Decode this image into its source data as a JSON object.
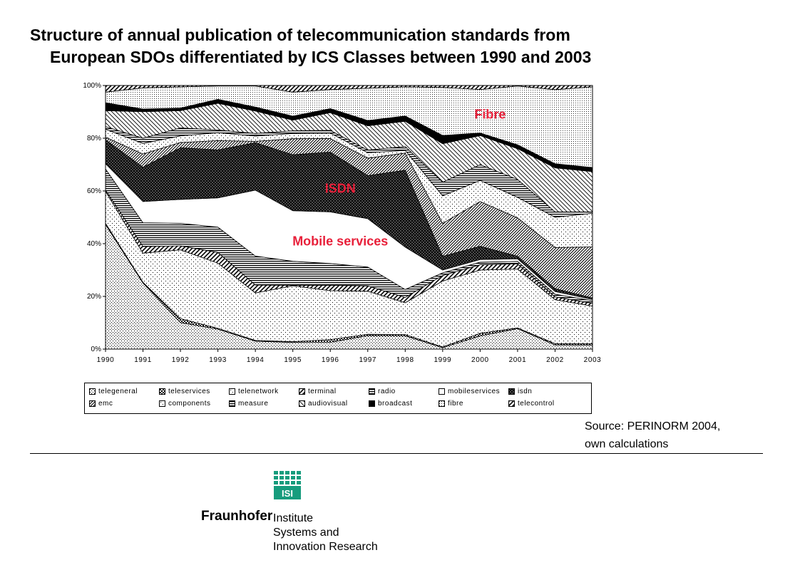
{
  "title": {
    "line1": "Structure of annual publication of telecommunication standards from",
    "line2": "European SDOs differentiated by ICS Classes between 1990 and 2003"
  },
  "source": {
    "line1": "Source: PERINORM 2004,",
    "line2": "own calculations"
  },
  "logo": {
    "badge": "ISI",
    "name": "Fraunhofer",
    "institute": [
      "Institute",
      "Systems and",
      "Innovation Research"
    ]
  },
  "chart_data": {
    "type": "area",
    "stacked": true,
    "percent": true,
    "x": [
      "1990",
      "1991",
      "1992",
      "1993",
      "1994",
      "1995",
      "1996",
      "1997",
      "1998",
      "1999",
      "2000",
      "2001",
      "2002",
      "2003"
    ],
    "y_ticks": [
      "0%",
      "20%",
      "40%",
      "60%",
      "80%",
      "100%"
    ],
    "ylim": [
      0,
      100
    ],
    "legend_position": "bottom",
    "annotations": [
      {
        "text": "Fibre",
        "series": "fibre",
        "x": "2000",
        "y": 89,
        "color": "#e8203a"
      },
      {
        "text": "ISDN",
        "series": "isdn",
        "x": "1996",
        "y": 61,
        "color": "#e8203a"
      },
      {
        "text": "Mobile services",
        "series": "mobileservices",
        "x": "1996",
        "y": 41,
        "color": "#e8203a"
      }
    ],
    "series": [
      {
        "name": "telegeneral",
        "pattern": "dots",
        "values": [
          47,
          25,
          10,
          7.5,
          3,
          2.5,
          2.5,
          5,
          5,
          0.5,
          5,
          8,
          1.5,
          1.5
        ]
      },
      {
        "name": "teleservices",
        "pattern": "checker",
        "values": [
          0.5,
          0.3,
          1.5,
          0.3,
          0.3,
          0.3,
          1,
          0.5,
          0.5,
          0.3,
          1,
          0.3,
          0.5,
          0.5
        ]
      },
      {
        "name": "telenetwork",
        "pattern": "light-dots",
        "values": [
          12,
          11,
          26,
          24.5,
          18,
          21,
          18,
          16,
          12,
          24,
          24,
          23,
          16,
          14
        ]
      },
      {
        "name": "terminal",
        "pattern": "zigzag",
        "values": [
          0.5,
          2.5,
          1.5,
          4,
          3,
          0.2,
          2,
          2,
          2,
          2,
          2,
          2,
          1,
          1
        ]
      },
      {
        "name": "radio",
        "pattern": "horizontal-lines",
        "values": [
          8,
          9,
          8.5,
          9.5,
          11,
          9,
          8,
          7,
          3,
          1,
          1,
          1,
          1,
          1
        ]
      },
      {
        "name": "mobileservices",
        "pattern": "blank",
        "values": [
          2,
          8,
          9,
          11,
          25,
          19,
          19,
          18,
          16,
          1,
          1,
          1,
          1,
          0.5
        ]
      },
      {
        "name": "isdn",
        "pattern": "cross-hatch",
        "values": [
          9,
          13,
          19.5,
          18,
          18,
          21,
          22,
          16,
          29,
          5,
          5,
          1,
          1,
          0.5
        ]
      },
      {
        "name": "emc",
        "pattern": "diagonal-dense",
        "values": [
          1,
          5,
          2,
          3.5,
          0.5,
          6,
          5,
          6.5,
          6.5,
          12,
          17,
          15,
          15,
          19
        ]
      },
      {
        "name": "components",
        "pattern": "light-dots",
        "values": [
          3,
          4,
          2.5,
          3,
          2,
          2,
          2,
          2,
          1,
          10,
          8,
          8,
          11,
          12.5
        ]
      },
      {
        "name": "measure",
        "pattern": "horizontal-lines",
        "values": [
          1,
          2,
          3,
          1,
          1,
          1,
          1,
          1,
          1.5,
          5,
          6,
          7,
          2,
          0.5
        ]
      },
      {
        "name": "audiovisual",
        "pattern": "diagonal-sparse",
        "values": [
          6,
          10,
          6.5,
          10,
          8.5,
          4,
          6.5,
          9,
          9.5,
          14,
          11,
          12,
          16,
          15
        ]
      },
      {
        "name": "broadcast",
        "pattern": "solid-black",
        "values": [
          3,
          1,
          1,
          1.5,
          1.5,
          1.5,
          1.5,
          2,
          2,
          3,
          1,
          1.5,
          1.5,
          1.5
        ]
      },
      {
        "name": "fibre",
        "pattern": "fine-dots",
        "values": [
          4,
          8,
          8,
          5,
          8,
          9,
          7,
          12,
          11,
          17.5,
          16.5,
          23,
          27,
          30
        ]
      },
      {
        "name": "telecontrol",
        "pattern": "zigzag",
        "values": [
          2.5,
          0.9,
          0.5,
          0.2,
          0.2,
          2.5,
          1.5,
          1,
          0.5,
          0.7,
          1.5,
          0.2,
          1.5,
          0.5
        ]
      }
    ]
  }
}
